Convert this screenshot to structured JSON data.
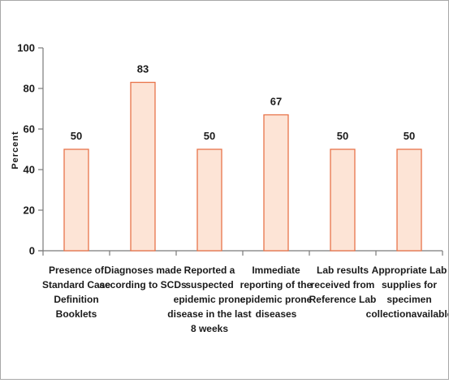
{
  "chart_data": {
    "type": "bar",
    "ylabel": "Percent",
    "xlabel": "",
    "ylim": [
      0,
      100
    ],
    "yticks": [
      0,
      20,
      40,
      60,
      80,
      100
    ],
    "grid": false,
    "legend": "none",
    "categories": [
      [
        "Presence of",
        "Standard Case",
        "Definition",
        "Booklets"
      ],
      [
        "Diagnoses made",
        "according to SCDs"
      ],
      [
        "Reported a",
        "suspected",
        "epidemic prone",
        "disease in the last",
        "8 weeks"
      ],
      [
        "Immediate",
        "reporting of the",
        "epidemic prone",
        "diseases"
      ],
      [
        "Lab results",
        "received from",
        "Reference Lab"
      ],
      [
        "Appropriate Lab",
        "supplies for",
        "specimen",
        "collectionavailable"
      ]
    ],
    "values": [
      50,
      83,
      50,
      67,
      50,
      50
    ],
    "colors": {
      "bar_fill": "#fde4d6",
      "bar_stroke": "#e8744a",
      "axis": "#7a7a7a"
    }
  }
}
